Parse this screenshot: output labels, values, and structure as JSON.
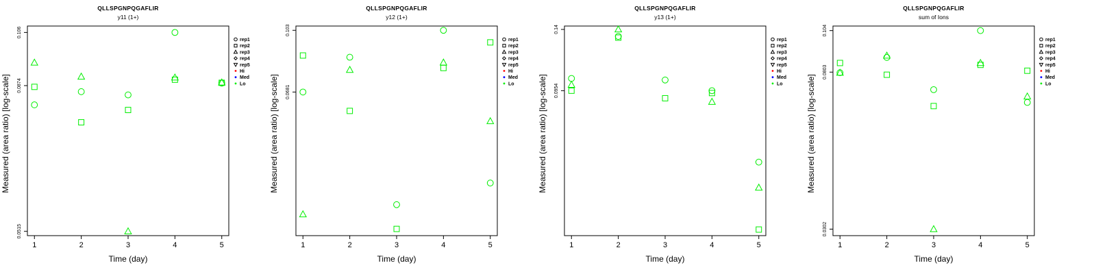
{
  "chart_data": [
    {
      "type": "scatter",
      "title": "QLLSPGNPQGAFLIR",
      "subtitle": "y11 (1+)",
      "xlabel": "Time (day)",
      "ylabel": "Measured (area ratio) [log-scale]",
      "log_y": true,
      "xlim": [
        0.85,
        5.15
      ],
      "ylim": [
        0.0507,
        0.1085
      ],
      "x_ticks": [
        "1",
        "2",
        "3",
        "4",
        "5"
      ],
      "y_ticks": [
        "0.0515",
        "0.0874",
        "0.106"
      ],
      "grid": false,
      "legend_position": "outside-right",
      "legend": [
        {
          "label": "rep1",
          "marker": "circle",
          "color": "#000000"
        },
        {
          "label": "rep2",
          "marker": "square",
          "color": "#000000"
        },
        {
          "label": "rep3",
          "marker": "triangle-up",
          "color": "#000000"
        },
        {
          "label": "rep4",
          "marker": "diamond",
          "color": "#000000"
        },
        {
          "label": "rep5",
          "marker": "triangle-down",
          "color": "#000000"
        },
        {
          "label": "Hi",
          "marker": "dot",
          "color": "#ff0000"
        },
        {
          "label": "Med",
          "marker": "dot",
          "color": "#0000ff"
        },
        {
          "label": "Lo",
          "marker": "dot",
          "color": "#00ee00"
        }
      ],
      "series": [
        {
          "marker": "circle",
          "color": "#00ee00",
          "points": [
            [
              1,
              0.0815
            ],
            [
              2,
              0.0855
            ],
            [
              3,
              0.0845
            ],
            [
              4,
              0.106
            ],
            [
              5,
              0.0882
            ]
          ]
        },
        {
          "marker": "square",
          "color": "#00ee00",
          "points": [
            [
              1,
              0.087
            ],
            [
              2,
              0.0765
            ],
            [
              3,
              0.08
            ],
            [
              4,
              0.0893
            ],
            [
              5,
              0.0883
            ]
          ]
        },
        {
          "marker": "triangle-up",
          "color": "#00ee00",
          "points": [
            [
              1,
              0.095
            ],
            [
              2,
              0.0903
            ],
            [
              3,
              0.0515
            ],
            [
              4,
              0.09
            ],
            [
              5,
              0.0884
            ]
          ]
        }
      ]
    },
    {
      "type": "scatter",
      "title": "QLLSPGNPQGAFLIR",
      "subtitle": "y12 (1+)",
      "xlabel": "Time (day)",
      "ylabel": "Measured (area ratio) [log-scale]",
      "log_y": true,
      "xlim": [
        0.85,
        5.15
      ],
      "ylim": [
        0.026,
        0.106
      ],
      "x_ticks": [
        "1",
        "2",
        "3",
        "4",
        "5"
      ],
      "y_ticks": [
        "0.0681",
        "0.103"
      ],
      "grid": false,
      "legend_position": "outside-right",
      "legend": [
        {
          "label": "rep1",
          "marker": "circle",
          "color": "#000000"
        },
        {
          "label": "rep2",
          "marker": "square",
          "color": "#000000"
        },
        {
          "label": "rep3",
          "marker": "triangle-up",
          "color": "#000000"
        },
        {
          "label": "rep4",
          "marker": "diamond",
          "color": "#000000"
        },
        {
          "label": "rep5",
          "marker": "triangle-down",
          "color": "#000000"
        },
        {
          "label": "Hi",
          "marker": "dot",
          "color": "#ff0000"
        },
        {
          "label": "Med",
          "marker": "dot",
          "color": "#0000ff"
        },
        {
          "label": "Lo",
          "marker": "dot",
          "color": "#00ee00"
        }
      ],
      "series": [
        {
          "marker": "circle",
          "color": "#00ee00",
          "points": [
            [
              1,
              0.0681
            ],
            [
              2,
              0.086
            ],
            [
              3,
              0.032
            ],
            [
              4,
              0.103
            ],
            [
              5,
              0.037
            ]
          ]
        },
        {
          "marker": "square",
          "color": "#00ee00",
          "points": [
            [
              1,
              0.087
            ],
            [
              2,
              0.06
            ],
            [
              3,
              0.0272
            ],
            [
              4,
              0.08
            ],
            [
              5,
              0.095
            ]
          ]
        },
        {
          "marker": "triangle-up",
          "color": "#00ee00",
          "points": [
            [
              1,
              0.03
            ],
            [
              2,
              0.079
            ],
            [
              3,
              null
            ],
            [
              4,
              0.083
            ],
            [
              5,
              0.056
            ]
          ]
        }
      ]
    },
    {
      "type": "scatter",
      "title": "QLLSPGNPQGAFLIR",
      "subtitle": "y13 (1+)",
      "xlabel": "Time (day)",
      "ylabel": "Measured (area ratio) [log-scale]",
      "log_y": true,
      "xlim": [
        0.85,
        5.15
      ],
      "ylim": [
        0.0385,
        0.143
      ],
      "x_ticks": [
        "1",
        "2",
        "3",
        "4",
        "5"
      ],
      "y_ticks": [
        "0.0954",
        "0.14"
      ],
      "grid": false,
      "legend_position": "outside-right",
      "legend": [
        {
          "label": "rep1",
          "marker": "circle",
          "color": "#000000"
        },
        {
          "label": "rep2",
          "marker": "square",
          "color": "#000000"
        },
        {
          "label": "rep3",
          "marker": "triangle-up",
          "color": "#000000"
        },
        {
          "label": "rep4",
          "marker": "diamond",
          "color": "#000000"
        },
        {
          "label": "rep5",
          "marker": "triangle-down",
          "color": "#000000"
        },
        {
          "label": "Hi",
          "marker": "dot",
          "color": "#ff0000"
        },
        {
          "label": "Med",
          "marker": "dot",
          "color": "#0000ff"
        },
        {
          "label": "Lo",
          "marker": "dot",
          "color": "#00ee00"
        }
      ],
      "series": [
        {
          "marker": "circle",
          "color": "#00ee00",
          "points": [
            [
              1,
              0.103
            ],
            [
              2,
              0.134
            ],
            [
              3,
              0.102
            ],
            [
              4,
              0.0954
            ],
            [
              5,
              0.061
            ]
          ]
        },
        {
          "marker": "square",
          "color": "#00ee00",
          "points": [
            [
              1,
              0.0954
            ],
            [
              2,
              0.133
            ],
            [
              3,
              0.091
            ],
            [
              4,
              0.094
            ],
            [
              5,
              0.04
            ]
          ]
        },
        {
          "marker": "triangle-up",
          "color": "#00ee00",
          "points": [
            [
              1,
              0.099
            ],
            [
              2,
              0.14
            ],
            [
              3,
              null
            ],
            [
              4,
              0.089
            ],
            [
              5,
              0.052
            ]
          ]
        }
      ]
    },
    {
      "type": "scatter",
      "title": "QLLSPGNPQGAFLIR",
      "subtitle": "sum of Ions",
      "xlabel": "Time (day)",
      "ylabel": "Measured (area ratio) [log-scale]",
      "log_y": true,
      "xlim": [
        0.85,
        5.15
      ],
      "ylim": [
        0.029,
        0.107
      ],
      "x_ticks": [
        "1",
        "2",
        "3",
        "4",
        "5"
      ],
      "y_ticks": [
        "0.0302",
        "0.0803",
        "0.104"
      ],
      "grid": false,
      "legend_position": "outside-right",
      "legend": [
        {
          "label": "rep1",
          "marker": "circle",
          "color": "#000000"
        },
        {
          "label": "rep2",
          "marker": "square",
          "color": "#000000"
        },
        {
          "label": "rep3",
          "marker": "triangle-up",
          "color": "#000000"
        },
        {
          "label": "rep4",
          "marker": "diamond",
          "color": "#000000"
        },
        {
          "label": "rep5",
          "marker": "triangle-down",
          "color": "#000000"
        },
        {
          "label": "Hi",
          "marker": "dot",
          "color": "#ff0000"
        },
        {
          "label": "Med",
          "marker": "dot",
          "color": "#0000ff"
        },
        {
          "label": "Lo",
          "marker": "dot",
          "color": "#00ee00"
        }
      ],
      "series": [
        {
          "marker": "circle",
          "color": "#00ee00",
          "points": [
            [
              1,
              0.08
            ],
            [
              2,
              0.088
            ],
            [
              3,
              0.072
            ],
            [
              4,
              0.104
            ],
            [
              5,
              0.0665
            ]
          ]
        },
        {
          "marker": "square",
          "color": "#00ee00",
          "points": [
            [
              1,
              0.085
            ],
            [
              2,
              0.079
            ],
            [
              3,
              0.065
            ],
            [
              4,
              0.084
            ],
            [
              5,
              0.081
            ]
          ]
        },
        {
          "marker": "triangle-up",
          "color": "#00ee00",
          "points": [
            [
              1,
              0.08
            ],
            [
              2,
              0.089
            ],
            [
              3,
              0.0302
            ],
            [
              4,
              0.085
            ],
            [
              5,
              0.069
            ]
          ]
        }
      ]
    }
  ]
}
